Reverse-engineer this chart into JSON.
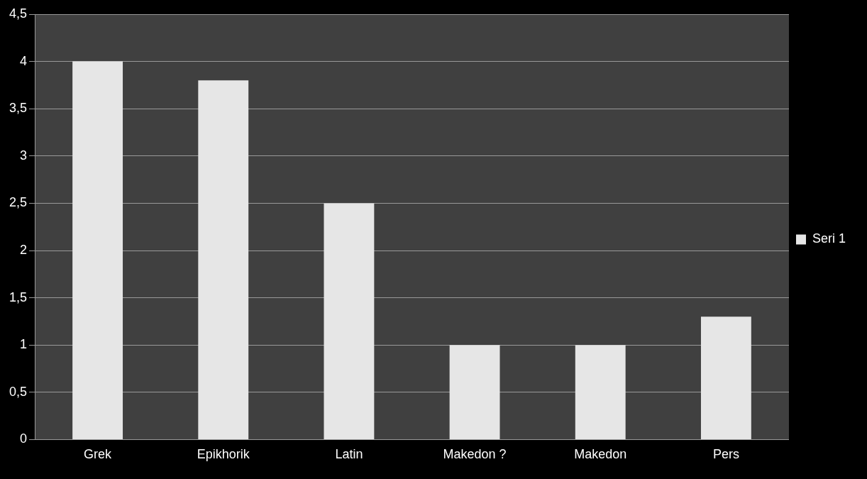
{
  "chart_data": {
    "type": "bar",
    "categories": [
      "Grek",
      "Epikhorik",
      "Latin",
      "Makedon ?",
      "Makedon",
      "Pers"
    ],
    "series": [
      {
        "name": "Seri 1",
        "color": "#e6e6e6",
        "values": [
          4,
          3.8,
          2.5,
          1,
          1,
          1.3
        ]
      }
    ],
    "ylim": [
      0,
      4.5
    ],
    "yticks": [
      0,
      {
        "value": 0.5,
        "label": "0,5"
      },
      1,
      {
        "value": 1.5,
        "label": "1,5"
      },
      2,
      {
        "value": 2.5,
        "label": "2,5"
      },
      3,
      {
        "value": 3.5,
        "label": "3,5"
      },
      4,
      {
        "value": 4.5,
        "label": "4,5"
      }
    ],
    "grid": "y",
    "legend": "right"
  }
}
